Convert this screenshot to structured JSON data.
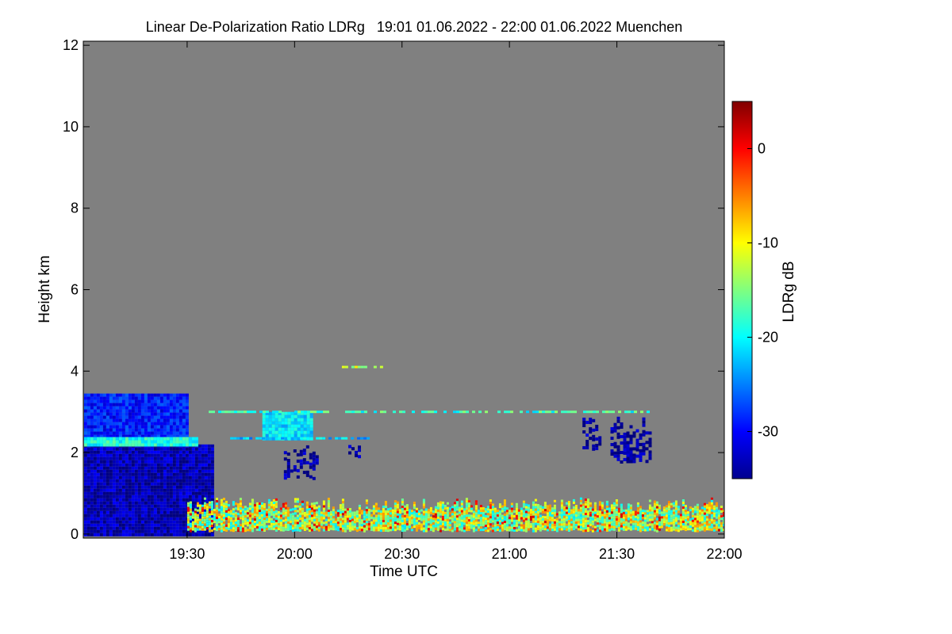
{
  "chart_data": {
    "type": "heatmap",
    "title": "Linear De-Polarization Ratio LDRg   19:01 01.06.2022 - 22:00 01.06.2022 Muenchen",
    "xlabel": "Time UTC",
    "ylabel": "Height km",
    "x_range_hours": [
      19.0167,
      22.0
    ],
    "y_range_km": [
      -0.1,
      12.1
    ],
    "x_ticks": [
      {
        "label": "19:30",
        "value": 19.5
      },
      {
        "label": "20:00",
        "value": 20.0
      },
      {
        "label": "20:30",
        "value": 20.5
      },
      {
        "label": "21:00",
        "value": 21.0
      },
      {
        "label": "21:30",
        "value": 21.5
      },
      {
        "label": "22:00",
        "value": 22.0
      }
    ],
    "y_ticks": [
      {
        "label": "0",
        "value": 0
      },
      {
        "label": "2",
        "value": 2
      },
      {
        "label": "4",
        "value": 4
      },
      {
        "label": "6",
        "value": 6
      },
      {
        "label": "8",
        "value": 8
      },
      {
        "label": "10",
        "value": 10
      },
      {
        "label": "12",
        "value": 12
      }
    ],
    "colorbar": {
      "label": "LDRg dB",
      "range": [
        -35,
        5
      ],
      "ticks": [
        {
          "label": "0",
          "value": 0
        },
        {
          "label": "-10",
          "value": -10
        },
        {
          "label": "-20",
          "value": -20
        },
        {
          "label": "-30",
          "value": -30
        }
      ]
    },
    "background_color": "#808080",
    "regions": [
      {
        "name": "lower-dense-layer",
        "t": [
          19.02,
          19.62
        ],
        "h": [
          0.0,
          2.2
        ],
        "ldr": -33
      },
      {
        "name": "upper-cloud-layer",
        "t": [
          19.02,
          19.5
        ],
        "h": [
          2.3,
          3.45
        ],
        "ldr": -29
      },
      {
        "name": "cloud-base-band",
        "t": [
          19.02,
          19.55
        ],
        "h": [
          2.18,
          2.38
        ],
        "ldr": -19
      },
      {
        "name": "cloud-tail-2000",
        "t": [
          19.85,
          20.08
        ],
        "h": [
          2.3,
          3.0
        ],
        "ldr": -21
      },
      {
        "name": "fall-streak-2000",
        "t": [
          19.95,
          20.1
        ],
        "h": [
          1.4,
          2.2
        ],
        "ldr": -34
      },
      {
        "name": "fall-streak-2015",
        "t": [
          20.25,
          20.3
        ],
        "h": [
          1.9,
          2.3
        ],
        "ldr": -34
      },
      {
        "name": "fall-streak-2125",
        "t": [
          21.34,
          21.42
        ],
        "h": [
          2.1,
          2.9
        ],
        "ldr": -34
      },
      {
        "name": "fall-streak-2135",
        "t": [
          21.47,
          21.65
        ],
        "h": [
          1.8,
          2.9
        ],
        "ldr": -34
      },
      {
        "name": "aerosol-boundary-layer",
        "t": [
          19.5,
          22.0
        ],
        "h": [
          0.1,
          0.9
        ],
        "ldr": -13
      }
    ],
    "layers": [
      {
        "name": "thin-layer-3000",
        "t": [
          19.6,
          21.65
        ],
        "h": 3.0,
        "ldr": -18
      },
      {
        "name": "thin-layer-2350",
        "t": [
          19.7,
          20.35
        ],
        "h": 2.35,
        "ldr": -22
      },
      {
        "name": "thin-layer-4100",
        "t": [
          20.22,
          20.4
        ],
        "h": 4.1,
        "ldr": -12
      }
    ]
  }
}
